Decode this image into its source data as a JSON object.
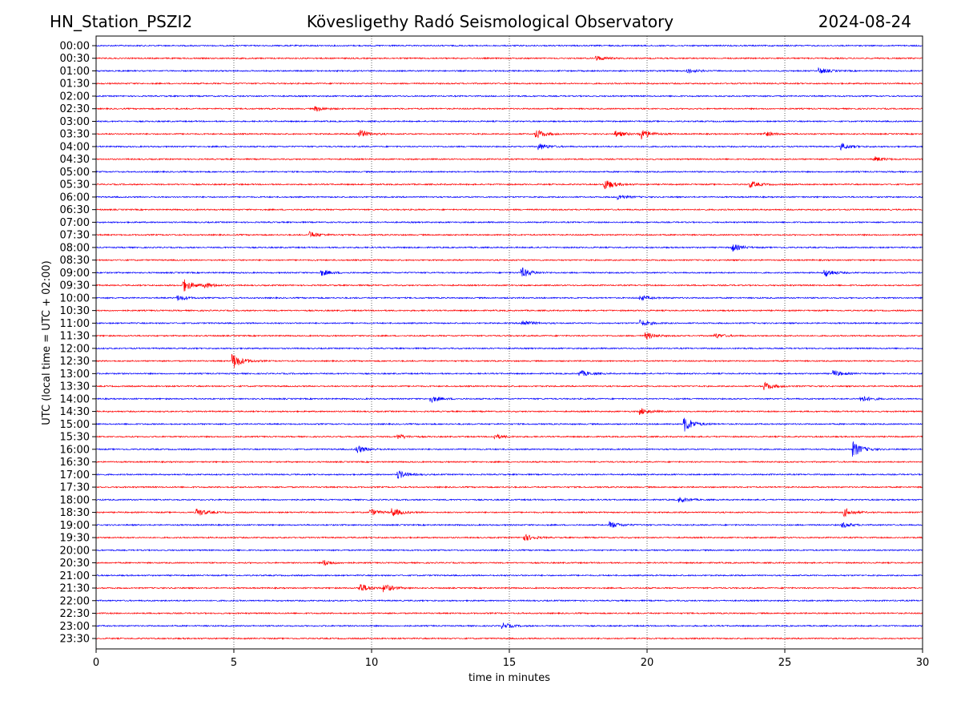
{
  "header": {
    "station": "HN_Station_PSZI2",
    "observatory": "Kövesligethy Radó Seismological Observatory",
    "date": "2024-08-24"
  },
  "chart_data": {
    "type": "line",
    "title": "Kövesligethy Radó Seismological Observatory",
    "xlabel": "time in minutes",
    "ylabel": "UTC (local time = UTC + 02:00)",
    "xlim": [
      0,
      30
    ],
    "xticks": [
      "0",
      "5",
      "10",
      "15",
      "20",
      "25",
      "30"
    ],
    "xtick_values": [
      0,
      5,
      10,
      15,
      20,
      25,
      30
    ],
    "grid": "vertical dotted at x ticks",
    "colors": [
      "#0000ff",
      "#ff0000"
    ],
    "rows": [
      "00:00",
      "00:30",
      "01:00",
      "01:30",
      "02:00",
      "02:30",
      "03:00",
      "03:30",
      "04:00",
      "04:30",
      "05:00",
      "05:30",
      "06:00",
      "06:30",
      "07:00",
      "07:30",
      "08:00",
      "08:30",
      "09:00",
      "09:30",
      "10:00",
      "10:30",
      "11:00",
      "11:30",
      "12:00",
      "12:30",
      "13:00",
      "13:30",
      "14:00",
      "14:30",
      "15:00",
      "15:30",
      "16:00",
      "16:30",
      "17:00",
      "17:30",
      "18:00",
      "18:30",
      "19:00",
      "19:30",
      "20:00",
      "20:30",
      "21:00",
      "21:30",
      "22:00",
      "22:30",
      "23:00",
      "23:30"
    ],
    "events": [
      {
        "row": "00:30",
        "minute": 18.2,
        "amp": 0.3
      },
      {
        "row": "01:00",
        "minute": 21.5,
        "amp": 0.3
      },
      {
        "row": "01:00",
        "minute": 26.3,
        "amp": 0.35
      },
      {
        "row": "02:30",
        "minute": 8.0,
        "amp": 0.3
      },
      {
        "row": "03:30",
        "minute": 9.6,
        "amp": 0.5
      },
      {
        "row": "03:30",
        "minute": 16.0,
        "amp": 0.6
      },
      {
        "row": "03:30",
        "minute": 18.9,
        "amp": 0.4
      },
      {
        "row": "03:30",
        "minute": 19.8,
        "amp": 0.7
      },
      {
        "row": "03:30",
        "minute": 24.3,
        "amp": 0.3
      },
      {
        "row": "04:00",
        "minute": 16.1,
        "amp": 0.4
      },
      {
        "row": "04:00",
        "minute": 27.1,
        "amp": 0.4
      },
      {
        "row": "04:30",
        "minute": 28.3,
        "amp": 0.3
      },
      {
        "row": "05:30",
        "minute": 18.5,
        "amp": 0.7
      },
      {
        "row": "05:30",
        "minute": 23.8,
        "amp": 0.4
      },
      {
        "row": "06:00",
        "minute": 19.0,
        "amp": 0.3
      },
      {
        "row": "07:30",
        "minute": 7.8,
        "amp": 0.4
      },
      {
        "row": "08:00",
        "minute": 23.1,
        "amp": 0.5
      },
      {
        "row": "09:00",
        "minute": 8.2,
        "amp": 0.4
      },
      {
        "row": "09:00",
        "minute": 15.5,
        "amp": 0.6
      },
      {
        "row": "09:00",
        "minute": 26.5,
        "amp": 0.5
      },
      {
        "row": "09:30",
        "minute": 3.2,
        "amp": 0.8
      },
      {
        "row": "09:30",
        "minute": 4.0,
        "amp": 0.3
      },
      {
        "row": "10:00",
        "minute": 3.0,
        "amp": 0.35
      },
      {
        "row": "10:00",
        "minute": 19.8,
        "amp": 0.3
      },
      {
        "row": "11:00",
        "minute": 15.5,
        "amp": 0.4
      },
      {
        "row": "11:00",
        "minute": 19.8,
        "amp": 0.4
      },
      {
        "row": "11:30",
        "minute": 20.0,
        "amp": 0.4
      },
      {
        "row": "11:30",
        "minute": 22.5,
        "amp": 0.3
      },
      {
        "row": "12:30",
        "minute": 5.0,
        "amp": 1.0
      },
      {
        "row": "13:00",
        "minute": 17.6,
        "amp": 0.4
      },
      {
        "row": "13:00",
        "minute": 26.8,
        "amp": 0.4
      },
      {
        "row": "13:30",
        "minute": 24.3,
        "amp": 0.5
      },
      {
        "row": "14:00",
        "minute": 12.2,
        "amp": 0.4
      },
      {
        "row": "14:00",
        "minute": 27.8,
        "amp": 0.4
      },
      {
        "row": "14:30",
        "minute": 19.8,
        "amp": 0.4
      },
      {
        "row": "15:00",
        "minute": 21.4,
        "amp": 1.0
      },
      {
        "row": "15:30",
        "minute": 11.0,
        "amp": 0.3
      },
      {
        "row": "15:30",
        "minute": 14.5,
        "amp": 0.3
      },
      {
        "row": "16:00",
        "minute": 9.5,
        "amp": 0.5
      },
      {
        "row": "16:00",
        "minute": 27.5,
        "amp": 1.0
      },
      {
        "row": "17:00",
        "minute": 11.0,
        "amp": 0.5
      },
      {
        "row": "18:00",
        "minute": 21.2,
        "amp": 0.35
      },
      {
        "row": "18:30",
        "minute": 3.7,
        "amp": 0.5
      },
      {
        "row": "18:30",
        "minute": 10.0,
        "amp": 0.4
      },
      {
        "row": "18:30",
        "minute": 10.8,
        "amp": 0.5
      },
      {
        "row": "18:30",
        "minute": 27.2,
        "amp": 0.5
      },
      {
        "row": "19:00",
        "minute": 18.7,
        "amp": 0.4
      },
      {
        "row": "19:00",
        "minute": 27.1,
        "amp": 0.35
      },
      {
        "row": "19:30",
        "minute": 15.6,
        "amp": 0.4
      },
      {
        "row": "20:30",
        "minute": 8.3,
        "amp": 0.35
      },
      {
        "row": "21:30",
        "minute": 9.6,
        "amp": 0.6
      },
      {
        "row": "21:30",
        "minute": 10.5,
        "amp": 0.5
      },
      {
        "row": "23:00",
        "minute": 14.8,
        "amp": 0.35
      }
    ]
  }
}
